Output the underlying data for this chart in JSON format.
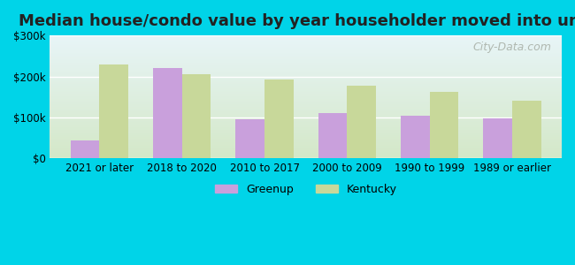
{
  "title": "Median house/condo value by year householder moved into unit",
  "categories": [
    "2021 or later",
    "2018 to 2020",
    "2010 to 2017",
    "2000 to 2009",
    "1990 to 1999",
    "1989 or earlier"
  ],
  "greenup_values": [
    45000,
    220000,
    95000,
    110000,
    105000,
    97000
  ],
  "kentucky_values": [
    230000,
    205000,
    193000,
    178000,
    163000,
    140000
  ],
  "greenup_color": "#c9a0dc",
  "kentucky_color": "#c8d89a",
  "background_outer": "#00d4e8",
  "background_inner_top": "#e8f5f8",
  "background_inner_bottom": "#d4e8c8",
  "ylim": [
    0,
    300000
  ],
  "yticks": [
    0,
    100000,
    200000,
    300000
  ],
  "ytick_labels": [
    "$0",
    "$100k",
    "$200k",
    "$300k"
  ],
  "title_fontsize": 13,
  "watermark": "City-Data.com"
}
